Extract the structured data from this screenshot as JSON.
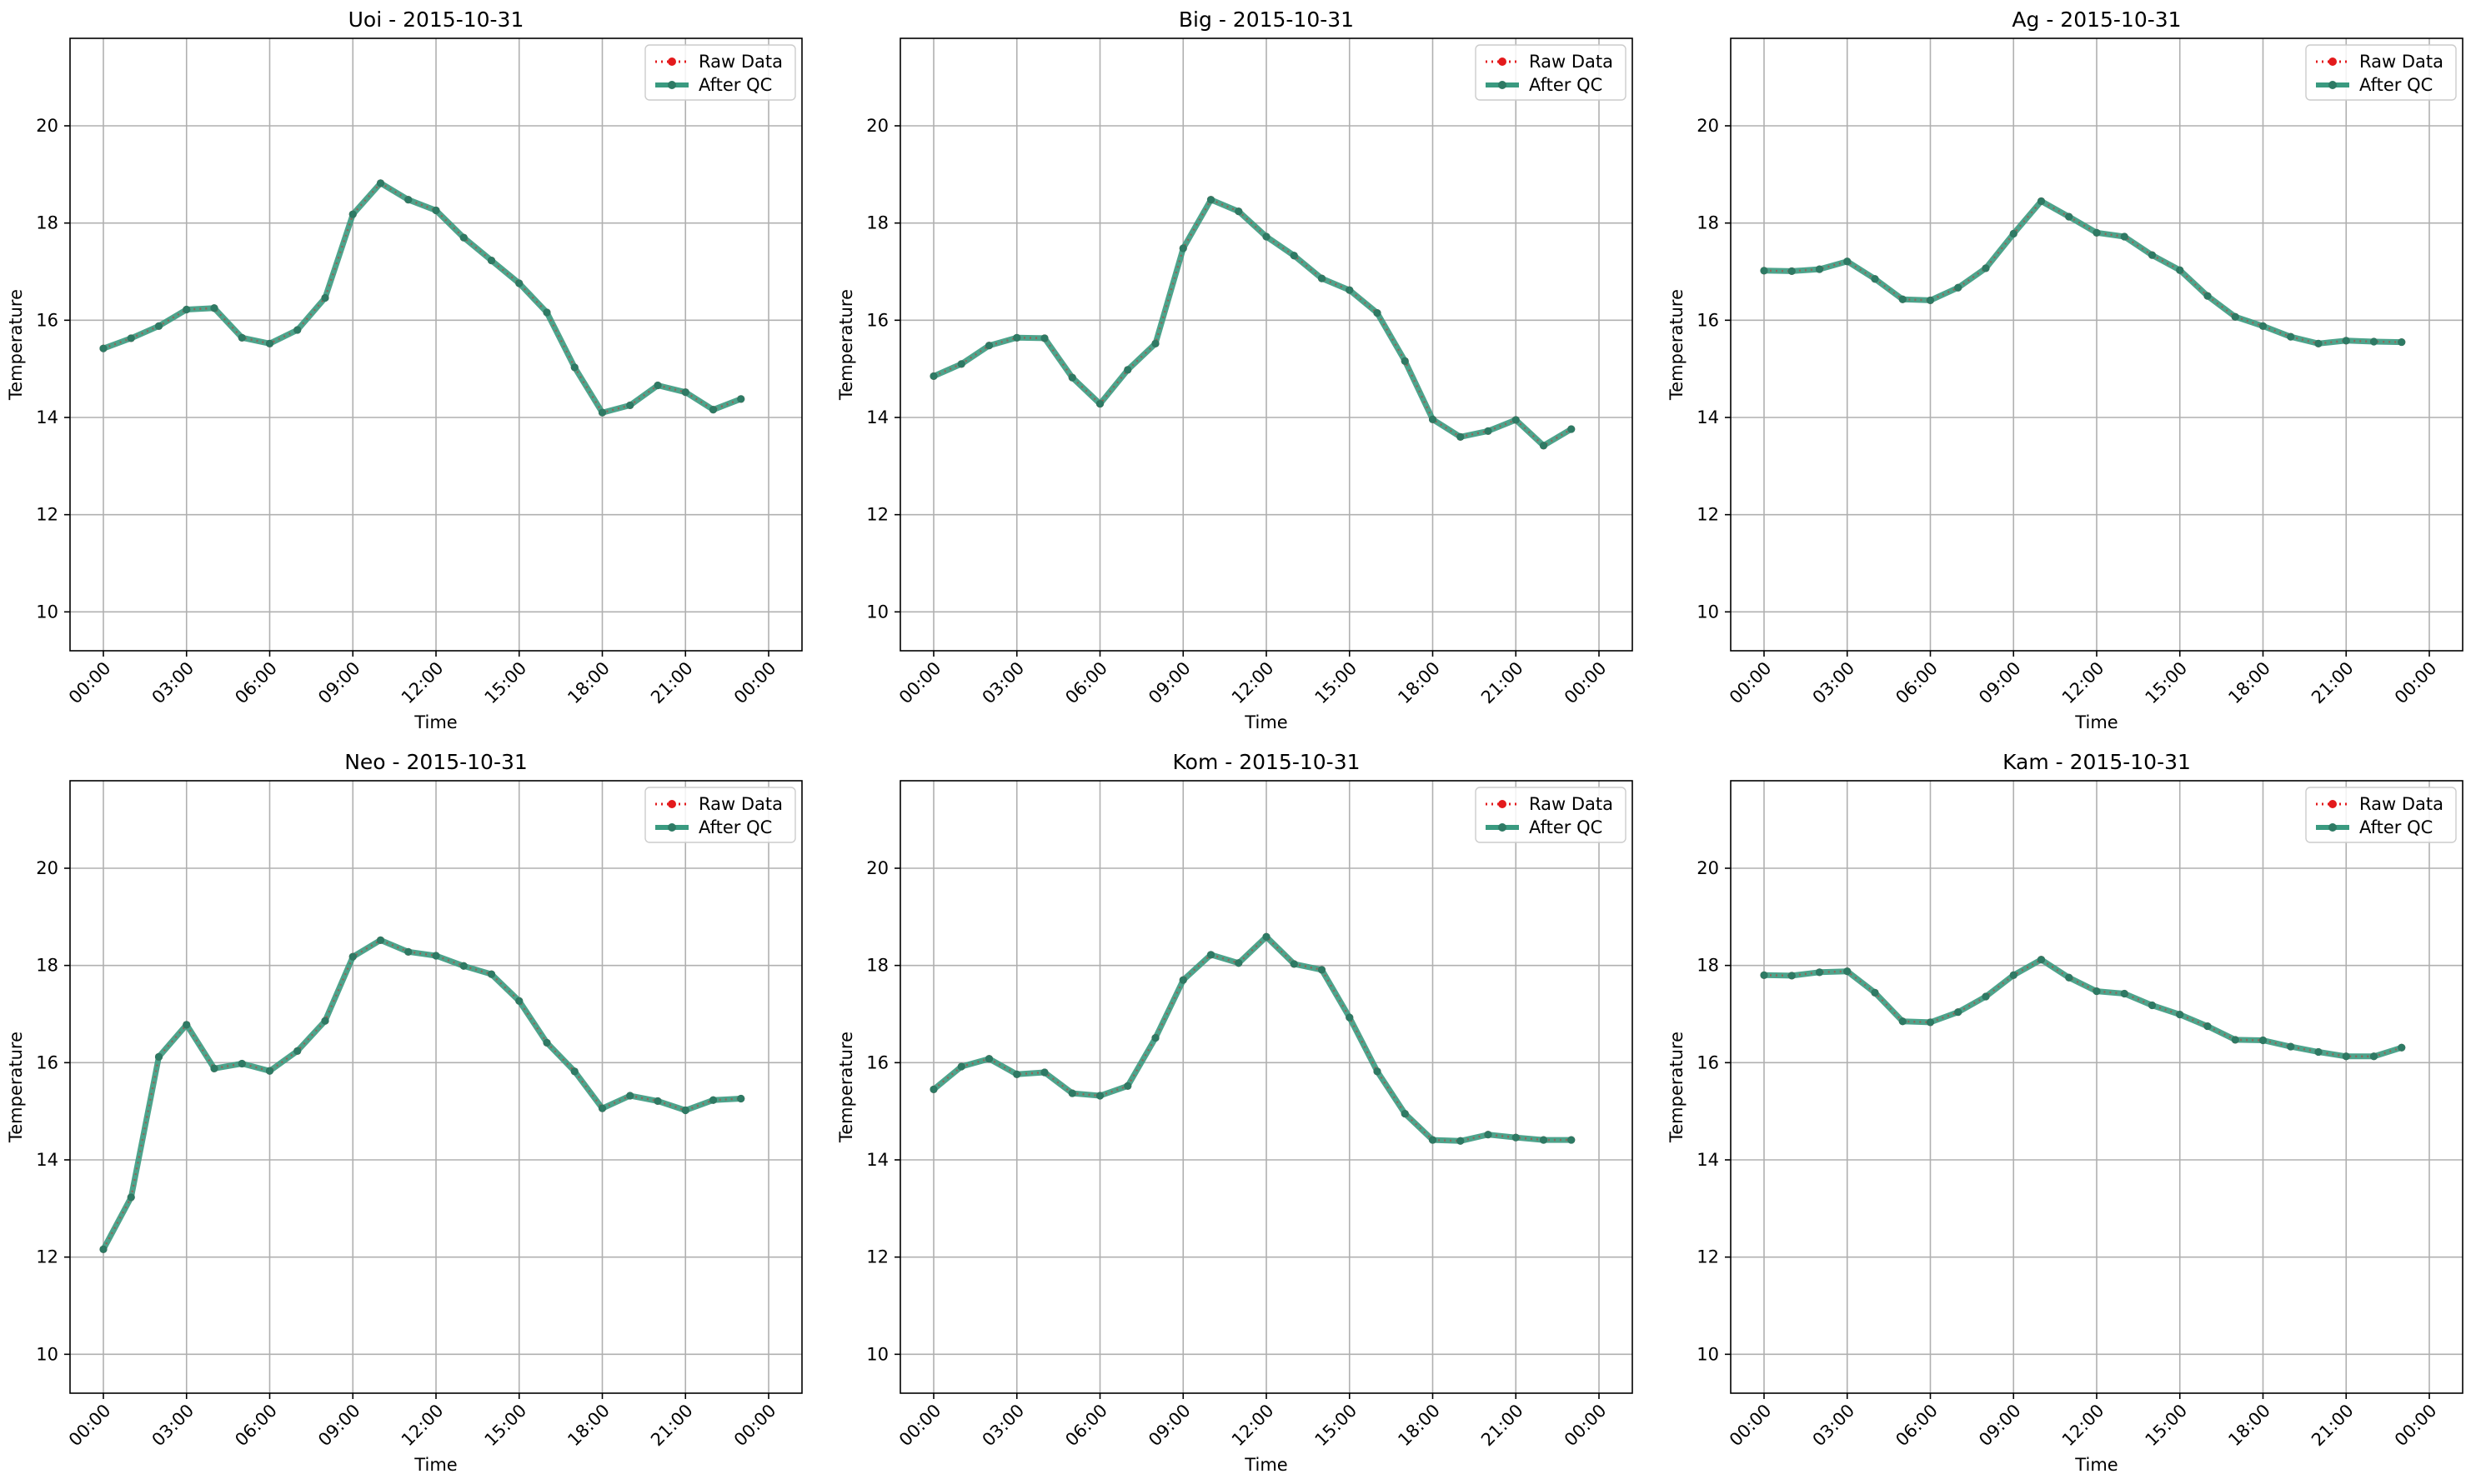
{
  "chart_data": [
    {
      "type": "line",
      "title": "Uoi - 2015-10-31",
      "xlabel": "Time",
      "ylabel": "Temperature",
      "ylim": [
        9.2,
        21.8
      ],
      "yticks": [
        10,
        12,
        14,
        16,
        18,
        20
      ],
      "xticks": [
        "00:00",
        "03:00",
        "06:00",
        "09:00",
        "12:00",
        "15:00",
        "18:00",
        "21:00",
        "00:00"
      ],
      "grid": true,
      "legend": "top-right",
      "series": [
        {
          "name": "Raw Data",
          "values": [
            15.42,
            15.63,
            15.88,
            16.22,
            16.25,
            15.64,
            15.52,
            15.8,
            16.46,
            18.18,
            18.82,
            18.48,
            18.26,
            17.7,
            17.23,
            16.76,
            16.16,
            15.03,
            14.1,
            14.25,
            14.66,
            14.52,
            14.16,
            14.38
          ]
        },
        {
          "name": "After QC",
          "values": [
            15.42,
            15.63,
            15.88,
            16.22,
            16.25,
            15.64,
            15.52,
            15.8,
            16.46,
            18.18,
            18.82,
            18.48,
            18.26,
            17.7,
            17.23,
            16.76,
            16.16,
            15.03,
            14.1,
            14.25,
            14.66,
            14.52,
            14.16,
            14.38
          ]
        }
      ]
    },
    {
      "type": "line",
      "title": "Big - 2015-10-31",
      "xlabel": "Time",
      "ylabel": "Temperature",
      "ylim": [
        9.2,
        21.8
      ],
      "yticks": [
        10,
        12,
        14,
        16,
        18,
        20
      ],
      "xticks": [
        "00:00",
        "03:00",
        "06:00",
        "09:00",
        "12:00",
        "15:00",
        "18:00",
        "21:00",
        "00:00"
      ],
      "grid": true,
      "legend": "top-right",
      "series": [
        {
          "name": "Raw Data",
          "values": [
            14.85,
            15.1,
            15.48,
            15.64,
            15.63,
            14.82,
            14.28,
            14.98,
            15.52,
            17.48,
            18.48,
            18.24,
            17.72,
            17.33,
            16.86,
            16.62,
            16.15,
            15.16,
            13.96,
            13.6,
            13.72,
            13.95,
            13.42,
            13.76
          ]
        },
        {
          "name": "After QC",
          "values": [
            14.85,
            15.1,
            15.48,
            15.64,
            15.63,
            14.82,
            14.28,
            14.98,
            15.52,
            17.48,
            18.48,
            18.24,
            17.72,
            17.33,
            16.86,
            16.62,
            16.15,
            15.16,
            13.96,
            13.6,
            13.72,
            13.95,
            13.42,
            13.76
          ]
        }
      ]
    },
    {
      "type": "line",
      "title": "Ag - 2015-10-31",
      "xlabel": "Time",
      "ylabel": "Temperature",
      "ylim": [
        9.2,
        21.8
      ],
      "yticks": [
        10,
        12,
        14,
        16,
        18,
        20
      ],
      "xticks": [
        "00:00",
        "03:00",
        "06:00",
        "09:00",
        "12:00",
        "15:00",
        "18:00",
        "21:00",
        "00:00"
      ],
      "grid": true,
      "legend": "top-right",
      "series": [
        {
          "name": "Raw Data",
          "values": [
            17.02,
            17.01,
            17.05,
            17.21,
            16.85,
            16.43,
            16.41,
            16.67,
            17.07,
            17.78,
            18.45,
            18.13,
            17.8,
            17.72,
            17.34,
            17.03,
            16.5,
            16.07,
            15.88,
            15.66,
            15.52,
            15.58,
            15.56,
            15.55
          ]
        },
        {
          "name": "After QC",
          "values": [
            17.02,
            17.01,
            17.05,
            17.21,
            16.85,
            16.43,
            16.41,
            16.67,
            17.07,
            17.78,
            18.45,
            18.13,
            17.8,
            17.72,
            17.34,
            17.03,
            16.5,
            16.07,
            15.88,
            15.66,
            15.52,
            15.58,
            15.56,
            15.55
          ]
        }
      ]
    },
    {
      "type": "line",
      "title": "Neo - 2015-10-31",
      "xlabel": "Time",
      "ylabel": "Temperature",
      "ylim": [
        9.2,
        21.8
      ],
      "yticks": [
        10,
        12,
        14,
        16,
        18,
        20
      ],
      "xticks": [
        "00:00",
        "03:00",
        "06:00",
        "09:00",
        "12:00",
        "15:00",
        "18:00",
        "21:00",
        "00:00"
      ],
      "grid": true,
      "legend": "top-right",
      "series": [
        {
          "name": "Raw Data",
          "values": [
            12.16,
            13.23,
            16.12,
            16.78,
            15.88,
            15.98,
            15.83,
            16.24,
            16.86,
            18.18,
            18.52,
            18.28,
            18.2,
            17.99,
            17.82,
            17.27,
            16.41,
            15.82,
            15.06,
            15.32,
            15.21,
            15.02,
            15.23,
            15.26
          ]
        },
        {
          "name": "After QC",
          "values": [
            12.16,
            13.23,
            16.12,
            16.78,
            15.88,
            15.98,
            15.83,
            16.24,
            16.86,
            18.18,
            18.52,
            18.28,
            18.2,
            17.99,
            17.82,
            17.27,
            16.41,
            15.82,
            15.06,
            15.32,
            15.21,
            15.02,
            15.23,
            15.26
          ]
        }
      ]
    },
    {
      "type": "line",
      "title": "Kom - 2015-10-31",
      "xlabel": "Time",
      "ylabel": "Temperature",
      "ylim": [
        9.2,
        21.8
      ],
      "yticks": [
        10,
        12,
        14,
        16,
        18,
        20
      ],
      "xticks": [
        "00:00",
        "03:00",
        "06:00",
        "09:00",
        "12:00",
        "15:00",
        "18:00",
        "21:00",
        "00:00"
      ],
      "grid": true,
      "legend": "top-right",
      "series": [
        {
          "name": "Raw Data",
          "values": [
            15.45,
            15.92,
            16.08,
            15.76,
            15.8,
            15.37,
            15.32,
            15.52,
            16.51,
            17.7,
            18.22,
            18.05,
            18.59,
            18.03,
            17.91,
            16.93,
            15.82,
            14.95,
            14.41,
            14.39,
            14.52,
            14.46,
            14.41,
            14.41
          ]
        },
        {
          "name": "After QC",
          "values": [
            15.45,
            15.92,
            16.08,
            15.76,
            15.8,
            15.37,
            15.32,
            15.52,
            16.51,
            17.7,
            18.22,
            18.05,
            18.59,
            18.03,
            17.91,
            16.93,
            15.82,
            14.95,
            14.41,
            14.39,
            14.52,
            14.46,
            14.41,
            14.41
          ]
        }
      ]
    },
    {
      "type": "line",
      "title": "Kam - 2015-10-31",
      "xlabel": "Time",
      "ylabel": "Temperature",
      "ylim": [
        9.2,
        21.8
      ],
      "yticks": [
        10,
        12,
        14,
        16,
        18,
        20
      ],
      "xticks": [
        "00:00",
        "03:00",
        "06:00",
        "09:00",
        "12:00",
        "15:00",
        "18:00",
        "21:00",
        "00:00"
      ],
      "grid": true,
      "legend": "top-right",
      "series": [
        {
          "name": "Raw Data",
          "values": [
            17.8,
            17.79,
            17.86,
            17.88,
            17.44,
            16.85,
            16.83,
            17.04,
            17.36,
            17.8,
            18.12,
            17.75,
            17.47,
            17.42,
            17.18,
            16.99,
            16.75,
            16.47,
            16.46,
            16.33,
            16.22,
            16.13,
            16.13,
            16.31
          ]
        },
        {
          "name": "After QC",
          "values": [
            17.8,
            17.79,
            17.86,
            17.88,
            17.44,
            16.85,
            16.83,
            17.04,
            17.36,
            17.8,
            18.12,
            17.75,
            17.47,
            17.42,
            17.18,
            16.99,
            16.75,
            16.47,
            16.46,
            16.33,
            16.22,
            16.13,
            16.13,
            16.31
          ]
        }
      ]
    }
  ],
  "colors": {
    "raw": "#e31a1c",
    "qc": "#3a9a80",
    "qc_marker": "#2e7a64",
    "grid": "#b0b0b0",
    "axis": "#000000"
  }
}
